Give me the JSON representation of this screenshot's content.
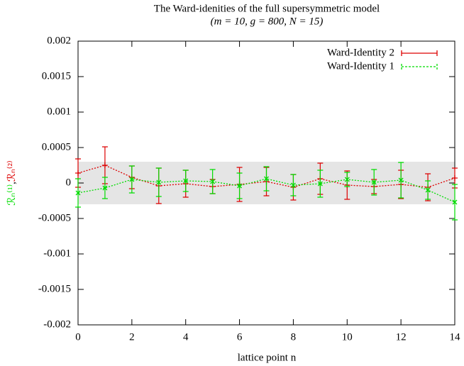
{
  "chart_data": {
    "type": "line",
    "title": "The Ward-idenities of the full supersymmetric model",
    "subtitle": "(m = 10, g = 800, N = 15)",
    "xlabel": "lattice point n",
    "ylabel": [
      "ℛₙ⁽¹⁾",
      ",",
      "ℛₙ⁽²⁾"
    ],
    "ylabel_colors": [
      "#00dd00",
      "#000000",
      "#dd0000"
    ],
    "x": [
      0,
      1,
      2,
      3,
      4,
      5,
      6,
      7,
      8,
      9,
      10,
      11,
      12,
      13,
      14
    ],
    "xlim": [
      0,
      14
    ],
    "xticks": [
      0,
      2,
      4,
      6,
      8,
      10,
      12,
      14
    ],
    "ylim": [
      -0.002,
      0.002
    ],
    "yticks": [
      -0.002,
      -0.0015,
      -0.001,
      -0.0005,
      0,
      0.0005,
      0.001,
      0.0015,
      0.002
    ],
    "band": [
      -0.0003,
      0.0003
    ],
    "band_color": "#e5e5e5",
    "legend": "top-right",
    "series": [
      {
        "name": "Ward-Identity 2",
        "color": "#dd0000",
        "values": [
          0.00014,
          0.00025,
          8e-05,
          -4e-05,
          -1e-05,
          -5e-05,
          -2e-05,
          2e-05,
          -6e-05,
          6e-05,
          -3e-05,
          -5e-05,
          -2e-05,
          -6e-05,
          7e-05
        ],
        "errors": [
          0.0002,
          0.00026,
          0.00016,
          0.00025,
          0.00019,
          0.0001,
          0.00024,
          0.0002,
          0.00018,
          0.00022,
          0.0002,
          0.0001,
          0.0002,
          0.00019,
          0.00014
        ]
      },
      {
        "name": "Ward-Identity 1",
        "color": "#00dd00",
        "values": [
          -0.00014,
          -7e-05,
          5e-05,
          1e-05,
          3e-05,
          2e-05,
          -4e-05,
          6e-05,
          -3e-05,
          -1e-05,
          5e-05,
          1e-05,
          4e-05,
          -0.0001,
          -0.00027
        ],
        "errors": [
          0.0002,
          0.00015,
          0.00019,
          0.0002,
          0.00015,
          0.00017,
          0.00018,
          0.00017,
          0.00015,
          0.00019,
          0.0001,
          0.00018,
          0.00025,
          0.00013,
          0.00025
        ]
      }
    ]
  }
}
